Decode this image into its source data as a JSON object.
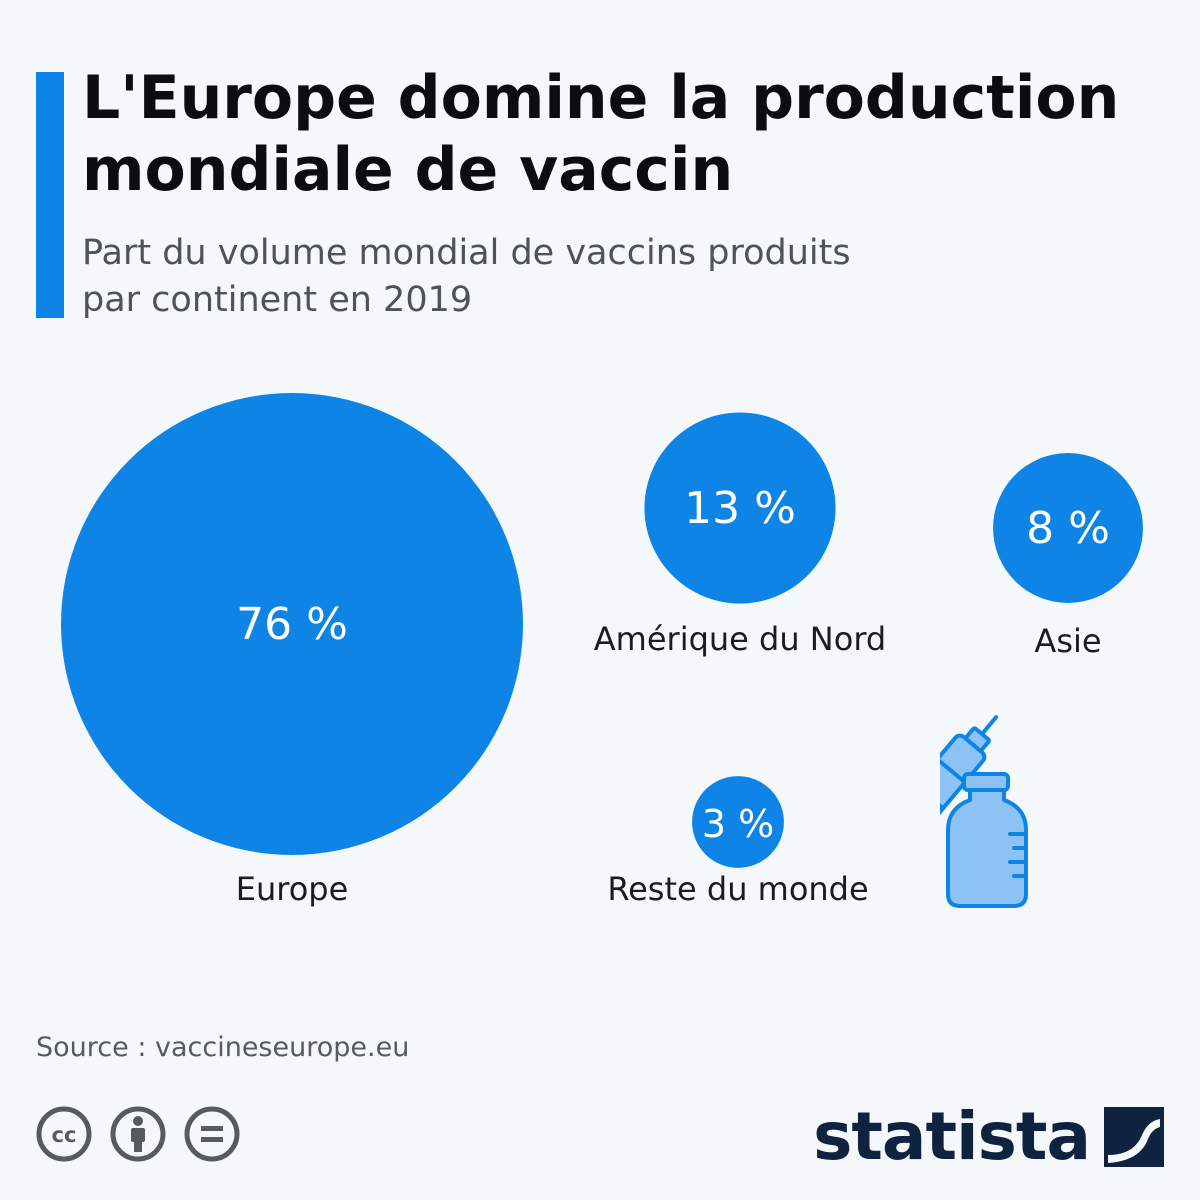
{
  "header": {
    "title": "L'Europe domine la production mondiale de vaccin",
    "subtitle": "Part du volume mondial de vaccins produits par continent en 2019"
  },
  "chart_data": {
    "type": "bubble",
    "title": "L'Europe domine la production mondiale de vaccin",
    "subtitle": "Part du volume mondial de vaccins produits par continent en 2019",
    "unit": "%",
    "categories": [
      "Europe",
      "Amérique du Nord",
      "Asie",
      "Reste du monde"
    ],
    "values": [
      76,
      13,
      8,
      3
    ],
    "value_labels": [
      "76 %",
      "13 %",
      "8 %",
      "3 %"
    ]
  },
  "footer": {
    "source": "Source : vaccineseurope.eu",
    "brand": "statista"
  },
  "icons": {
    "license": [
      "cc-icon",
      "attribution-icon",
      "no-derivatives-icon"
    ],
    "illustration": "vaccine-vial-syringe-icon",
    "brand_logo": "statista-logo-icon"
  },
  "colors": {
    "accent": "#0e85e6",
    "bubble": "#0e85e6",
    "icon_light": "#8cc3f4",
    "background": "#f4f8fb",
    "brand_dark": "#0f2341"
  }
}
